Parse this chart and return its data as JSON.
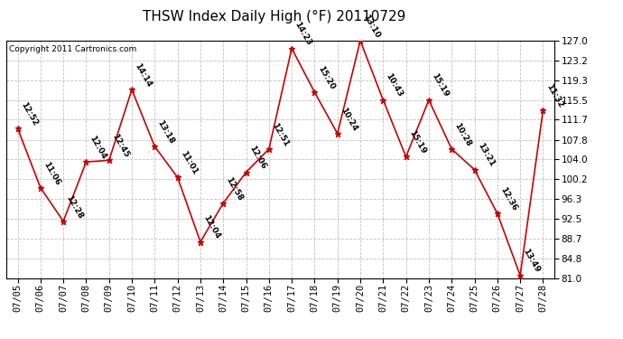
{
  "title": "THSW Index Daily High (°F) 20110729",
  "copyright": "Copyright 2011 Cartronics.com",
  "dates": [
    "07/05",
    "07/06",
    "07/07",
    "07/08",
    "07/09",
    "07/10",
    "07/11",
    "07/12",
    "07/13",
    "07/14",
    "07/15",
    "07/16",
    "07/17",
    "07/18",
    "07/19",
    "07/20",
    "07/21",
    "07/22",
    "07/23",
    "07/24",
    "07/25",
    "07/26",
    "07/27",
    "07/28"
  ],
  "values": [
    110.0,
    98.5,
    92.0,
    103.5,
    103.8,
    117.5,
    106.5,
    100.5,
    88.0,
    95.5,
    101.5,
    106.0,
    125.5,
    117.0,
    109.0,
    127.0,
    115.5,
    104.5,
    115.5,
    106.0,
    102.0,
    93.5,
    81.5,
    113.5
  ],
  "labels": [
    "12:52",
    "11:06",
    "12:28",
    "12:04",
    "12:45",
    "14:14",
    "13:18",
    "11:01",
    "12:04",
    "12:58",
    "12:06",
    "12:51",
    "14:23",
    "15:20",
    "10:24",
    "13:10",
    "10:43",
    "15:19",
    "15:19",
    "10:28",
    "13:21",
    "12:36",
    "13:49",
    "11:32"
  ],
  "ylim_min": 81.0,
  "ylim_max": 127.0,
  "yticks": [
    81.0,
    84.8,
    88.7,
    92.5,
    96.3,
    100.2,
    104.0,
    107.8,
    111.7,
    115.5,
    119.3,
    123.2,
    127.0
  ],
  "line_color": "#cc0000",
  "marker_color": "#cc0000",
  "bg_color": "#ffffff",
  "plot_bg_color": "#ffffff",
  "grid_color": "#b0b0b0",
  "title_fontsize": 11,
  "label_fontsize": 6.5,
  "tick_fontsize": 7.5,
  "copyright_fontsize": 6.5
}
